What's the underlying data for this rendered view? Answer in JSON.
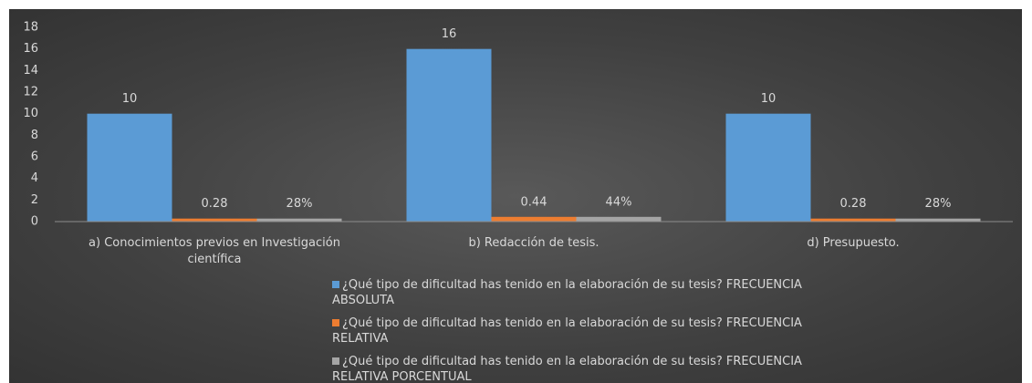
{
  "chart_data": {
    "type": "bar",
    "categories": [
      "a) Conocimientos previos en Investigación científica",
      "b) Redacción de tesis.",
      "d) Presupuesto."
    ],
    "series": [
      {
        "name": "¿Qué tipo de dificultad has tenido en la elaboración de su tesis?  FRECUENCIA ABSOLUTA",
        "color": "#5b9bd5",
        "values": [
          10,
          16,
          10
        ]
      },
      {
        "name": "¿Qué tipo de dificultad has tenido en la elaboración de su tesis?  FRECUENCIA RELATIVA",
        "color": "#ed7d31",
        "values": [
          0.28,
          0.44,
          0.28
        ]
      },
      {
        "name": "¿Qué tipo de dificultad has tenido en la elaboración de su tesis?  FRECUENCIA RELATIVA PORCENTUAL",
        "color": "#a5a5a5",
        "values": [
          0.28,
          0.44,
          0.28
        ],
        "value_labels": [
          "28%",
          "44%",
          "28%"
        ]
      }
    ],
    "ylim": [
      0,
      18
    ],
    "yticks": [
      0,
      2,
      4,
      6,
      8,
      10,
      12,
      14,
      16,
      18
    ],
    "grid": false,
    "legend": "bottom"
  }
}
